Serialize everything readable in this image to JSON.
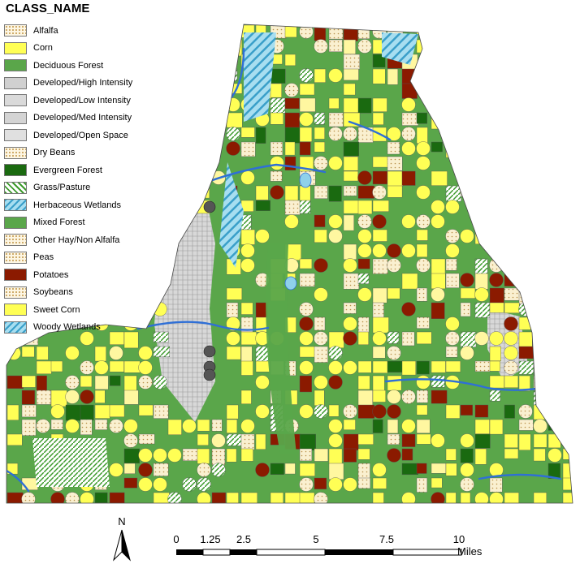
{
  "legend": {
    "title": "CLASS_NAME",
    "items": [
      {
        "label": "Alfalfa",
        "swatch": "dots"
      },
      {
        "label": "Corn",
        "swatch": "corn"
      },
      {
        "label": "Deciduous Forest",
        "swatch": "decid"
      },
      {
        "label": "Developed/High Intensity",
        "swatch": "dev1"
      },
      {
        "label": "Developed/Low Intensity",
        "swatch": "dev2"
      },
      {
        "label": "Developed/Med Intensity",
        "swatch": "dev3"
      },
      {
        "label": "Developed/Open Space",
        "swatch": "dev4"
      },
      {
        "label": "Dry Beans",
        "swatch": "dots"
      },
      {
        "label": "Evergreen Forest",
        "swatch": "ever"
      },
      {
        "label": "Grass/Pasture",
        "swatch": "grass"
      },
      {
        "label": "Herbaceous Wetlands",
        "swatch": "herb"
      },
      {
        "label": "Mixed Forest",
        "swatch": "mixed"
      },
      {
        "label": "Other Hay/Non Alfalfa",
        "swatch": "dots"
      },
      {
        "label": "Peas",
        "swatch": "dots"
      },
      {
        "label": "Potatoes",
        "swatch": "pot"
      },
      {
        "label": "Soybeans",
        "swatch": "dots"
      },
      {
        "label": "Sweet Corn",
        "swatch": "corn"
      },
      {
        "label": "Woody Wetlands",
        "swatch": "woody"
      }
    ]
  },
  "north_arrow": {
    "label": "N"
  },
  "scale_bar": {
    "ticks": [
      "0",
      "1.25",
      "2.5",
      "5",
      "7.5",
      "10"
    ],
    "unit": "Miles"
  },
  "colors": {
    "corn": "#ffff55",
    "forest": "#5aa64a",
    "evergreen": "#1a6a10",
    "potatoes": "#8b1a00",
    "developed": "#cfcfcf",
    "water": "#2f6fd6",
    "wetland": "#8fd1ea",
    "hay": "#f5e6b8"
  }
}
